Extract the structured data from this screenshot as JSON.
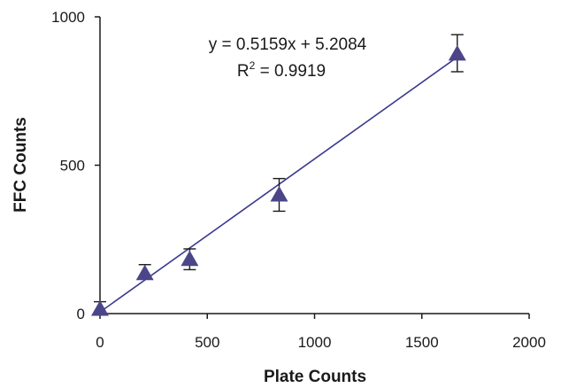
{
  "chart_data": {
    "type": "scatter",
    "title": "",
    "xlabel": "Plate Counts",
    "ylabel": "FFC Counts",
    "xlim": [
      0,
      2000
    ],
    "ylim": [
      0,
      1000
    ],
    "xticks": [
      "0",
      "500",
      "1000",
      "1500",
      "2000"
    ],
    "yticks": [
      "0",
      "500",
      "1000"
    ],
    "grid": false,
    "legend": "none",
    "points": [
      {
        "x": 0,
        "y": 15,
        "err_low": 15,
        "err_high": 25
      },
      {
        "x": 209,
        "y": 135,
        "err_low": 15,
        "err_high": 30
      },
      {
        "x": 418,
        "y": 183,
        "err_low": 35,
        "err_high": 35
      },
      {
        "x": 835,
        "y": 400,
        "err_low": 55,
        "err_high": 55
      },
      {
        "x": 1665,
        "y": 875,
        "err_low": 60,
        "err_high": 65
      }
    ],
    "trendline": {
      "slope": 0.5159,
      "intercept": 5.2084
    },
    "annotations": {
      "equation": "y = 0.5159x + 5.2084",
      "r2_prefix": "R",
      "r2_sup": "2",
      "r2_value": " = 0.9919"
    },
    "colors": {
      "marker": "#4b4688",
      "line": "#3b3a8f",
      "axis": "#1a1a1a"
    }
  }
}
